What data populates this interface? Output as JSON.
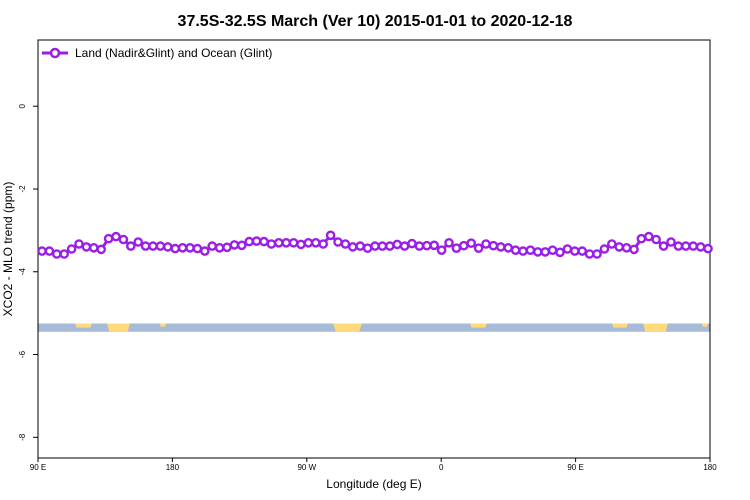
{
  "chart_data": {
    "type": "line",
    "title": "37.5S-32.5S March (Ver 10)   2015-01-01 to 2020-12-18",
    "xlabel": "Longitude (deg E)",
    "ylabel": "XCO2 - MLO trend (ppm)",
    "x_tick_labels": [
      "90 E",
      "180",
      "90 W",
      "0",
      "90 E",
      "180"
    ],
    "y_tick_labels": [
      "0",
      "-2",
      "-4",
      "-6",
      "-8"
    ],
    "ylim": [
      -8.5,
      1.6
    ],
    "y_ticks": [
      0,
      -2,
      -4,
      -6,
      -8
    ],
    "legend_position": "top-left",
    "land_mask_band_y_range": [
      -5.25,
      -5.45
    ],
    "colors": {
      "series": "#9a1ee8",
      "ocean": "#a6bbd8",
      "land": "#ffd97a"
    },
    "series": [
      {
        "name": "Land (Nadir&Glint) and Ocean (Glint)",
        "values": [
          -3.5,
          -3.5,
          -3.57,
          -3.57,
          -3.45,
          -3.33,
          -3.4,
          -3.42,
          -3.46,
          -3.2,
          -3.15,
          -3.22,
          -3.38,
          -3.28,
          -3.38,
          -3.38,
          -3.38,
          -3.4,
          -3.44,
          -3.42,
          -3.42,
          -3.44,
          -3.5,
          -3.38,
          -3.42,
          -3.41,
          -3.35,
          -3.36,
          -3.27,
          -3.26,
          -3.27,
          -3.33,
          -3.3,
          -3.3,
          -3.3,
          -3.34,
          -3.3,
          -3.3,
          -3.33,
          -3.12,
          -3.28,
          -3.33,
          -3.4,
          -3.38,
          -3.43,
          -3.38,
          -3.38,
          -3.38,
          -3.34,
          -3.38,
          -3.32,
          -3.38,
          -3.37,
          -3.36,
          -3.48,
          -3.3,
          -3.43,
          -3.37,
          -3.31,
          -3.43,
          -3.33,
          -3.37,
          -3.4,
          -3.42,
          -3.48,
          -3.5,
          -3.48,
          -3.52,
          -3.52,
          -3.48,
          -3.53,
          -3.45,
          -3.5,
          -3.5,
          -3.57,
          -3.57,
          -3.45,
          -3.33,
          -3.4,
          -3.42,
          -3.46,
          -3.2,
          -3.15,
          -3.22,
          -3.38,
          -3.28,
          -3.38,
          -3.38,
          -3.38,
          -3.4,
          -3.44
        ]
      }
    ]
  }
}
